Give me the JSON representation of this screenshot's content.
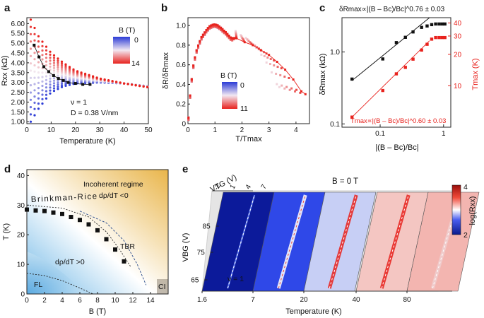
{
  "panels": {
    "a": {
      "label": "a",
      "ylabel": "Rxx (kΩ)",
      "xlabel": "Temperature (K)",
      "x_ticks": [
        "0",
        "10",
        "20",
        "30",
        "40",
        "50"
      ],
      "y_ticks": [
        "1.00",
        "1.50",
        "2.00",
        "2.50",
        "3.00",
        "3.50",
        "4.00",
        "4.50",
        "5.00",
        "5.50",
        "6.00"
      ],
      "legend_title": "B (T)",
      "legend_top": "0",
      "legend_bottom": "14",
      "nu_text": "ν = 1",
      "d_text": "D = 0.38 V/nm"
    },
    "b": {
      "label": "b",
      "ylabel": "δR/δRmax",
      "xlabel": "T/Tmax",
      "x_ticks": [
        "0",
        "1",
        "2",
        "3",
        "4"
      ],
      "y_ticks": [
        "0",
        "0.2",
        "0.4",
        "0.6",
        "0.8",
        "1.0"
      ],
      "legend_title": "B (T)",
      "legend_top": "0",
      "legend_bottom": "11"
    },
    "c": {
      "label": "c",
      "title": "δRmax∝|(B – Bc)/Bc|^0.76 ± 0.03",
      "ylabel_left": "δRmax (kΩ)",
      "ylabel_right": "Tmax (K)",
      "xlabel": "|(B – Bc)/Bc|",
      "left_ticks": [
        "1.0",
        "0.1"
      ],
      "right_ticks": [
        "40",
        "30",
        "20",
        "10"
      ],
      "x_ticks": [
        "0.1",
        "1"
      ],
      "fit_text": "Tmax∝|(B – Bc)/Bc|^0.60 ± 0.03"
    },
    "d": {
      "label": "d",
      "ylabel": "T (K)",
      "xlabel": "B (T)",
      "x_ticks": [
        "0",
        "2",
        "4",
        "6",
        "8",
        "10",
        "12",
        "14"
      ],
      "y_ticks": [
        "0",
        "10",
        "20",
        "30",
        "40"
      ],
      "incoherent": "Incoherent regime",
      "incoherent_cond": "dρ/dT <0",
      "brinkman": "Brinkman-Rice",
      "tbr": "TBR",
      "metal_cond": "dρ/dT >0",
      "fl": "FL",
      "ci": "CI"
    },
    "e": {
      "label": "e",
      "title": "B = 0 T",
      "ylabel": "VBG (V)",
      "vtg_label": "VTG (V)",
      "vtg_ticks": [
        "-2",
        "1",
        "4",
        "7"
      ],
      "y_ticks": [
        "85",
        "75",
        "65"
      ],
      "nu_text": "ν = 1",
      "xlabel": "Temperature (K)",
      "x_ticks": [
        "1.6",
        "7",
        "20",
        "40",
        "80"
      ],
      "cbar_label": "log(Rxx)",
      "cbar_max": "4",
      "cbar_min": "2"
    }
  },
  "colors": {
    "red": "#e8221d",
    "blue": "#1b3cf0",
    "navy": "#0a1a8c"
  },
  "chart_data": [
    {
      "panel": "a",
      "type": "line",
      "title": "",
      "xlabel": "Temperature (K)",
      "ylabel": "Rxx (kΩ)",
      "xlim": [
        0,
        50
      ],
      "ylim": [
        0.9,
        6.3
      ],
      "series_B_range": [
        0,
        14
      ],
      "series_count": 15,
      "envelope_curve_low_field": {
        "x": [
          1.6,
          5,
          10,
          15,
          20,
          30,
          40,
          50
        ],
        "y": [
          1.0,
          1.7,
          2.5,
          2.8,
          2.95,
          3.0,
          2.95,
          2.8
        ]
      },
      "envelope_curve_high_field": {
        "x": [
          1.6,
          5,
          10,
          15,
          20,
          30,
          40,
          50
        ],
        "y": [
          6.2,
          5.3,
          4.5,
          4.0,
          3.6,
          3.2,
          2.95,
          2.75
        ]
      },
      "tmax_markers": {
        "x": [
          3,
          5,
          7,
          9,
          11,
          13,
          15,
          17,
          20,
          23,
          26
        ],
        "y": [
          4.9,
          4.3,
          3.8,
          3.55,
          3.35,
          3.2,
          3.1,
          3.0,
          2.95,
          2.9,
          2.9
        ]
      }
    },
    {
      "panel": "b",
      "type": "scatter",
      "xlabel": "T/Tmax",
      "ylabel": "δR/δRmax",
      "xlim": [
        0,
        4.5
      ],
      "ylim": [
        0,
        1.08
      ],
      "collapse_curve": {
        "x": [
          0.02,
          0.1,
          0.2,
          0.3,
          0.4,
          0.5,
          0.6,
          0.7,
          0.8,
          0.9,
          1.0,
          1.1,
          1.2,
          1.4,
          1.6
        ],
        "y": [
          0.05,
          0.35,
          0.58,
          0.72,
          0.8,
          0.87,
          0.91,
          0.95,
          0.98,
          0.995,
          1.0,
          0.99,
          0.97,
          0.92,
          0.86
        ]
      },
      "high_field_tail": {
        "x": [
          1.8,
          2.1,
          2.4,
          2.7,
          3.0,
          3.3,
          3.6,
          3.9,
          4.2,
          4.35
        ],
        "y": [
          0.87,
          0.83,
          0.8,
          0.75,
          0.7,
          0.63,
          0.55,
          0.45,
          0.33,
          0.3
        ]
      }
    },
    {
      "panel": "c",
      "type": "scatter",
      "xlabel": "|(B – Bc)/Bc|",
      "ylabel": "δRmax (kΩ)",
      "y2label": "Tmax (K)",
      "xscale": "log",
      "yscale": "log",
      "xlim": [
        0.025,
        1.3
      ],
      "ylim": [
        0.09,
        3
      ],
      "y2lim": [
        4,
        45
      ],
      "series": [
        {
          "name": "δRmax",
          "x": [
            0.036,
            0.11,
            0.18,
            0.25,
            0.33,
            0.45,
            0.55,
            0.65,
            0.75,
            0.85,
            0.95,
            1.05
          ],
          "values": [
            0.42,
            0.8,
            1.35,
            1.6,
            1.9,
            2.2,
            2.3,
            2.4,
            2.45,
            2.45,
            2.45,
            2.45
          ]
        },
        {
          "name": "Tmax (K)",
          "x": [
            0.036,
            0.11,
            0.18,
            0.25,
            0.33,
            0.45,
            0.55,
            0.65,
            0.75,
            0.85,
            0.95,
            1.05
          ],
          "values": [
            5,
            9,
            13,
            15,
            18,
            22,
            25,
            28,
            29,
            29,
            29,
            29
          ]
        }
      ],
      "fits": [
        {
          "name": "δRmax fit",
          "exponent": 0.76,
          "x": [
            0.036,
            0.6
          ],
          "values": [
            0.4,
            3.0
          ]
        },
        {
          "name": "Tmax fit",
          "exponent": 0.6,
          "x": [
            0.036,
            0.6
          ],
          "values": [
            5,
            27
          ]
        }
      ]
    },
    {
      "panel": "d",
      "type": "scatter",
      "xlabel": "B (T)",
      "ylabel": "T (K)",
      "xlim": [
        0,
        16
      ],
      "ylim": [
        0,
        42
      ],
      "series": [
        {
          "name": "Tmax",
          "x": [
            0,
            1,
            2,
            3,
            4,
            5,
            6,
            7,
            8,
            9,
            10,
            11
          ],
          "values": [
            28.5,
            28.2,
            28,
            27.5,
            27,
            26,
            25,
            23.5,
            21.5,
            18.5,
            15,
            11
          ]
        }
      ],
      "lines": [
        {
          "name": "Brinkman-Rice boundary",
          "x": [
            0,
            4,
            7,
            9,
            10.5,
            11.8
          ],
          "values": [
            30,
            29,
            26,
            21,
            15,
            9
          ]
        },
        {
          "name": "TBR",
          "x": [
            6,
            9,
            11,
            12.5,
            13.5
          ],
          "values": [
            28,
            24,
            18,
            10,
            3
          ]
        },
        {
          "name": "FL",
          "x": [
            0,
            2,
            4,
            6,
            7.5
          ],
          "values": [
            7,
            6.2,
            4.5,
            2,
            0
          ]
        }
      ]
    },
    {
      "panel": "e",
      "type": "heatmap",
      "title": "B = 0 T",
      "xlabel": "Temperature (K)",
      "ylabel": "VBG (V)",
      "temperature_ticks": [
        "1.6",
        "7",
        "20",
        "40",
        "80"
      ],
      "slices_temperature_K": [
        1.6,
        7,
        20,
        40,
        80
      ],
      "vbg_ticks": [
        85,
        75,
        65
      ],
      "vtg_ticks": [
        -2,
        1,
        4,
        7
      ],
      "colorbar": {
        "label": "log(Rxx)",
        "min": 2,
        "max": 4,
        "cmap": "blue-white-red"
      }
    }
  ]
}
